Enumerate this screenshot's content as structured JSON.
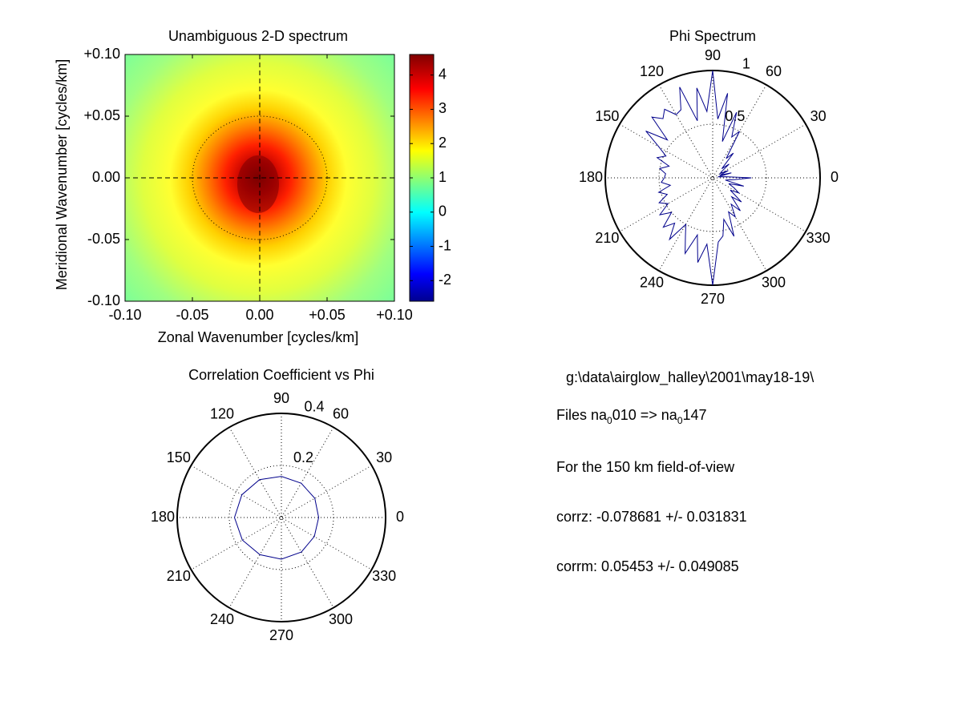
{
  "chart_data": [
    {
      "type": "heatmap",
      "title": "Unambiguous 2-D spectrum",
      "xlabel": "Zonal Wavenumber [cycles/km]",
      "ylabel": "Meridional Wavenumber [cycles/km]",
      "xlim": [
        -0.1,
        0.1
      ],
      "ylim": [
        -0.1,
        0.1
      ],
      "xticks": [
        "-0.10",
        "-0.05",
        "0.00",
        "+0.05",
        "+0.10"
      ],
      "yticks": [
        "+0.10",
        "+0.05",
        "0.00",
        "-0.05",
        "-0.10"
      ],
      "colorbar": {
        "ticks": [
          "4",
          "3",
          "2",
          "1",
          "0",
          "-1",
          "-2"
        ],
        "range": [
          -2.6,
          4.6
        ],
        "colormap": "jet"
      },
      "peak": {
        "x": 0.0,
        "y": 0.0,
        "value": 4.5
      },
      "background_value": 1.0,
      "dotted_circle_radius": 0.05,
      "crosshair": "dashed lines at x = 0 and y = 0"
    },
    {
      "type": "polar",
      "title": "Phi Spectrum",
      "angle_ticks": [
        "0",
        "30",
        "60",
        "90",
        "120",
        "150",
        "180",
        "210",
        "240",
        "270",
        "300",
        "330"
      ],
      "radial_ticks": [
        "0.5",
        "1"
      ],
      "rmax": 1.0,
      "series": [
        {
          "color": "#00008b",
          "angles_deg": [
            0,
            5,
            10,
            15,
            20,
            25,
            30,
            35,
            40,
            45,
            50,
            55,
            60,
            65,
            70,
            75,
            80,
            85,
            90,
            95,
            100,
            105,
            110,
            115,
            120,
            125,
            130,
            135,
            140,
            145,
            150,
            155,
            160,
            165,
            170,
            175,
            180,
            185,
            190,
            195,
            200,
            205,
            210,
            215,
            220,
            225,
            230,
            235,
            240,
            245,
            250,
            255,
            260,
            265,
            270,
            275,
            280,
            285,
            290,
            295,
            300,
            305,
            310,
            315,
            320,
            325,
            330,
            335,
            340,
            345,
            350,
            355
          ],
          "r": [
            0.36,
            0.12,
            0.05,
            0.18,
            0.07,
            0.16,
            0.08,
            0.1,
            0.2,
            0.12,
            0.3,
            0.22,
            0.5,
            0.42,
            0.65,
            0.35,
            0.8,
            0.55,
            1.0,
            0.62,
            0.85,
            0.55,
            0.9,
            0.7,
            0.68,
            0.78,
            0.72,
            0.8,
            0.55,
            0.76,
            0.58,
            0.48,
            0.55,
            0.42,
            0.5,
            0.44,
            0.45,
            0.48,
            0.4,
            0.52,
            0.45,
            0.55,
            0.48,
            0.6,
            0.5,
            0.65,
            0.55,
            0.7,
            0.5,
            0.6,
            0.75,
            0.55,
            0.8,
            0.62,
            1.0,
            0.6,
            0.55,
            0.4,
            0.58,
            0.35,
            0.42,
            0.3,
            0.4,
            0.25,
            0.35,
            0.2,
            0.28,
            0.22,
            0.16,
            0.3,
            0.12,
            0.2
          ]
        }
      ]
    },
    {
      "type": "polar",
      "title": "Correlation Coefficient vs Phi",
      "angle_ticks": [
        "0",
        "30",
        "60",
        "90",
        "120",
        "150",
        "180",
        "210",
        "240",
        "270",
        "300",
        "330"
      ],
      "radial_ticks": [
        "0.2",
        "0.4"
      ],
      "rmax": 0.4,
      "series": [
        {
          "color": "#00008b",
          "angles_deg": [
            0,
            30,
            60,
            90,
            120,
            150,
            180,
            210,
            240,
            270,
            300,
            330,
            360
          ],
          "r": [
            0.143,
            0.148,
            0.152,
            0.158,
            0.168,
            0.175,
            0.18,
            0.173,
            0.165,
            0.16,
            0.153,
            0.146,
            0.143
          ]
        }
      ]
    }
  ],
  "info": {
    "path": "g:\\data\\airglow_halley\\2001\\may18-19\\",
    "files_prefix": "Files  na",
    "files_sub1": "0",
    "files_mid": "010  =>  na",
    "files_sub2": "0",
    "files_end": "147",
    "fov": "For the  150 km field-of-view",
    "corrz": "corrz: -0.078681 +/- 0.031831",
    "corrm": "corrm: 0.05453 +/- 0.049085"
  }
}
